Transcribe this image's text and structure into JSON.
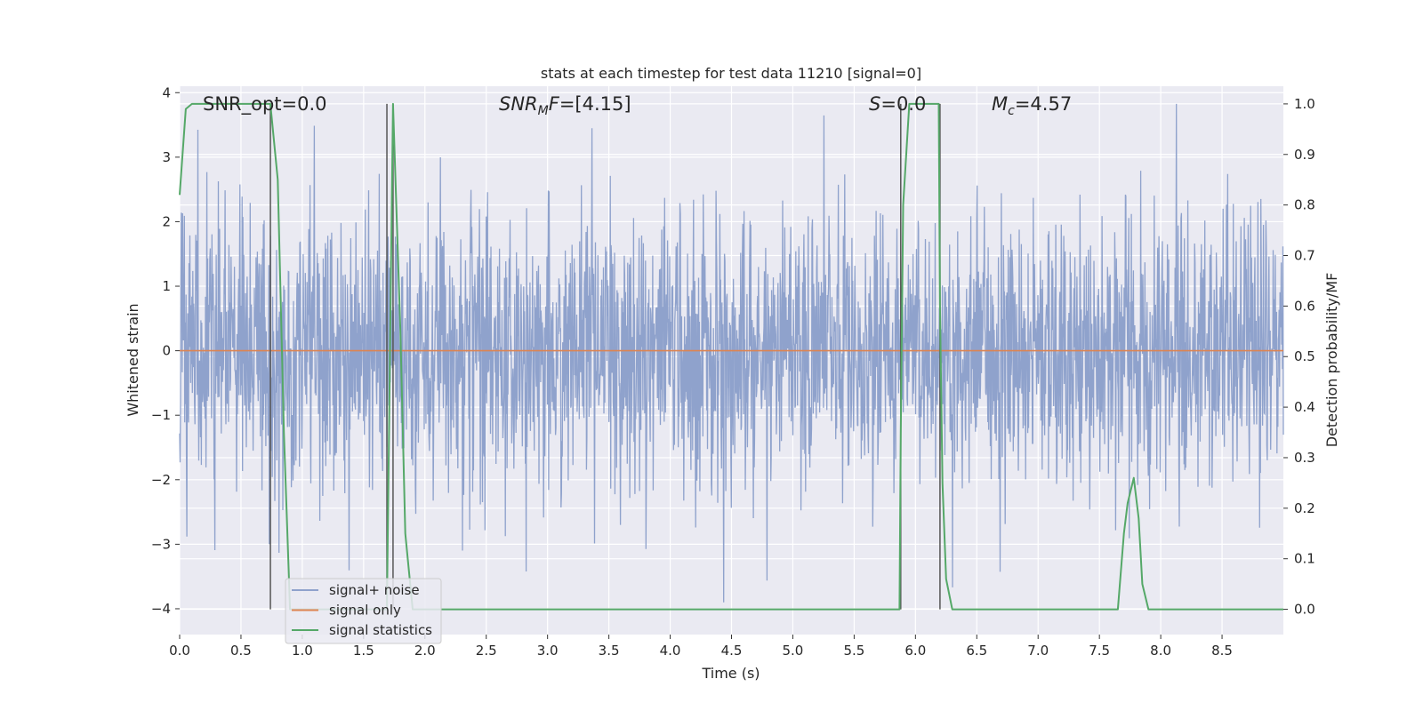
{
  "chart_data": {
    "type": "line",
    "title": "stats at each timestep for test data 11210 [signal=0]",
    "xlabel": "Time (s)",
    "ylabel_left": "Whitened strain",
    "ylabel_right": "Detection probability/MF",
    "xlim": [
      0.0,
      9.0
    ],
    "ylim_left": [
      -4.4,
      4.1
    ],
    "ylim_right": [
      -0.05,
      1.035
    ],
    "x_ticks": [
      "0.0",
      "0.5",
      "1.0",
      "1.5",
      "2.0",
      "2.5",
      "3.0",
      "3.5",
      "4.0",
      "4.5",
      "5.0",
      "5.5",
      "6.0",
      "6.5",
      "7.0",
      "7.5",
      "8.0",
      "8.5"
    ],
    "y_ticks_left": [
      "−4",
      "−3",
      "−2",
      "−1",
      "0",
      "1",
      "2",
      "3",
      "4"
    ],
    "y_ticks_right": [
      "0.0",
      "0.1",
      "0.2",
      "0.3",
      "0.4",
      "0.5",
      "0.6",
      "0.7",
      "0.8",
      "0.9",
      "1.0"
    ],
    "grid": true,
    "legend_placement": "lower-left",
    "legend": [
      {
        "label": "signal+ noise",
        "color": "#8fa2cc"
      },
      {
        "label": "signal only",
        "color": "#dd8452"
      },
      {
        "label": "signal statistics",
        "color": "#55a868"
      }
    ],
    "annotations": [
      {
        "id": "snr_opt",
        "parts": [
          {
            "t": "SNR_opt=0.0",
            "style": "normal"
          }
        ]
      },
      {
        "id": "snr_mf",
        "parts": [
          {
            "t": "SNR",
            "style": "italic"
          },
          {
            "t": "M",
            "style": "italic-sub"
          },
          {
            "t": "F",
            "style": "italic"
          },
          {
            "t": "=[4.15]",
            "style": "normal"
          }
        ]
      },
      {
        "id": "s",
        "parts": [
          {
            "t": "S",
            "style": "italic"
          },
          {
            "t": "=0.0",
            "style": "normal"
          }
        ]
      },
      {
        "id": "mc",
        "parts": [
          {
            "t": "M",
            "style": "italic"
          },
          {
            "t": "c",
            "style": "italic-sub"
          },
          {
            "t": "=4.57",
            "style": "normal"
          }
        ]
      }
    ],
    "vertical_lines_x": [
      0.74,
      1.69,
      1.74,
      5.88,
      6.2
    ],
    "series": [
      {
        "name": "signal+ noise",
        "axis": "left",
        "color": "#8fa2cc",
        "x_range": [
          0.0,
          9.0
        ],
        "noise_std": 1.05,
        "peak_abs": 3.9
      },
      {
        "name": "signal only",
        "axis": "left",
        "color": "#dd8452",
        "x": [
          0.0,
          9.0
        ],
        "y": [
          0.0,
          0.0
        ]
      },
      {
        "name": "signal statistics",
        "axis": "right",
        "color": "#55a868",
        "x": [
          0.0,
          0.05,
          0.1,
          0.2,
          0.4,
          0.6,
          0.7,
          0.74,
          0.8,
          0.82,
          0.85,
          0.9,
          1.0,
          1.5,
          1.65,
          1.69,
          1.74,
          1.8,
          1.84,
          1.9,
          2.0,
          3.0,
          4.0,
          5.0,
          5.87,
          5.88,
          5.9,
          5.95,
          6.0,
          6.1,
          6.19,
          6.2,
          6.22,
          6.25,
          6.3,
          6.5,
          6.8,
          7.5,
          7.65,
          7.7,
          7.73,
          7.78,
          7.82,
          7.85,
          7.9,
          8.0,
          9.0
        ],
        "y": [
          0.82,
          0.99,
          1.0,
          1.0,
          1.0,
          1.0,
          1.0,
          1.0,
          0.85,
          0.65,
          0.35,
          0.0,
          0.0,
          0.0,
          0.0,
          0.0,
          1.0,
          0.55,
          0.15,
          0.0,
          0.0,
          0.0,
          0.0,
          0.0,
          0.0,
          0.35,
          0.8,
          1.0,
          1.0,
          1.0,
          1.0,
          0.6,
          0.25,
          0.06,
          0.0,
          0.0,
          0.0,
          0.0,
          0.0,
          0.15,
          0.21,
          0.26,
          0.18,
          0.05,
          0.0,
          0.0,
          0.0
        ]
      }
    ]
  }
}
